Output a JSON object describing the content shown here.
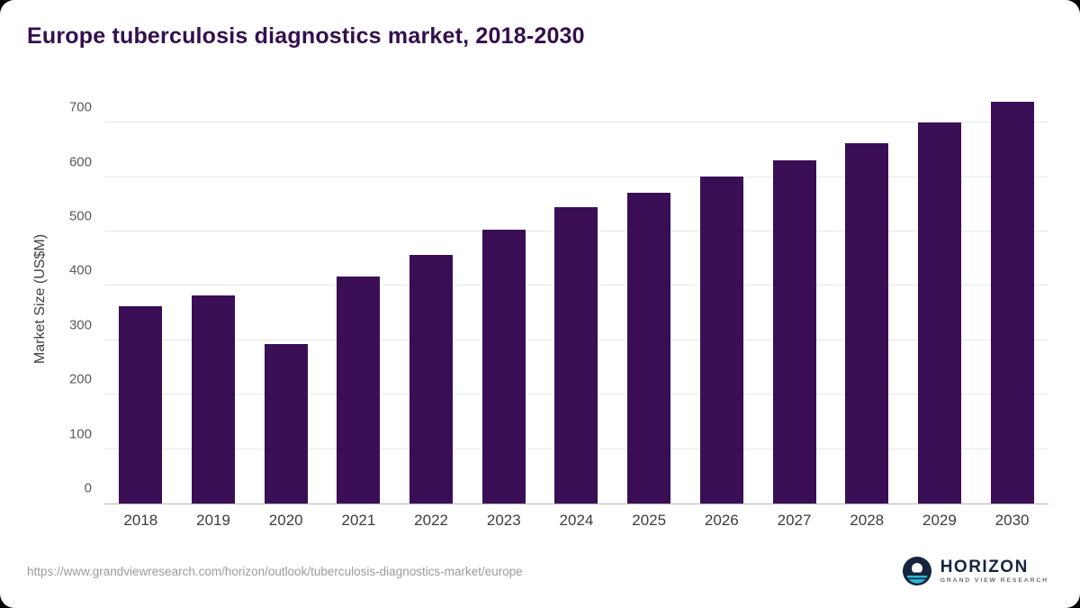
{
  "title": "Europe tuberculosis diagnostics market, 2018-2030",
  "source_url": "https://www.grandviewresearch.com/horizon/outlook/tuberculosis-diagnostics-market/europe",
  "logo": {
    "name": "HORIZON",
    "subtitle": "GRAND VIEW RESEARCH",
    "icon": "horizon-circle-icon"
  },
  "colors": {
    "bar": "#3a0e55",
    "title": "#330f4e",
    "gridline": "#e7e7e7",
    "axis_line": "#b5b5b5",
    "logo_navy": "#16243d",
    "logo_teal": "#29b8d8"
  },
  "chart_data": {
    "type": "bar",
    "title": "Europe tuberculosis diagnostics market, 2018-2030",
    "categories": [
      "2018",
      "2019",
      "2020",
      "2021",
      "2022",
      "2023",
      "2024",
      "2025",
      "2026",
      "2027",
      "2028",
      "2029",
      "2030"
    ],
    "values": [
      362,
      382,
      293,
      418,
      457,
      503,
      544,
      571,
      601,
      631,
      663,
      700,
      738
    ],
    "xlabel": "",
    "ylabel": "Market Size (US$M)",
    "ylim": [
      0,
      755
    ],
    "yticks": [
      0,
      100,
      200,
      300,
      400,
      500,
      600,
      700
    ],
    "grid": "horizontal",
    "legend": "none",
    "bar_color": "#3a0e55"
  }
}
